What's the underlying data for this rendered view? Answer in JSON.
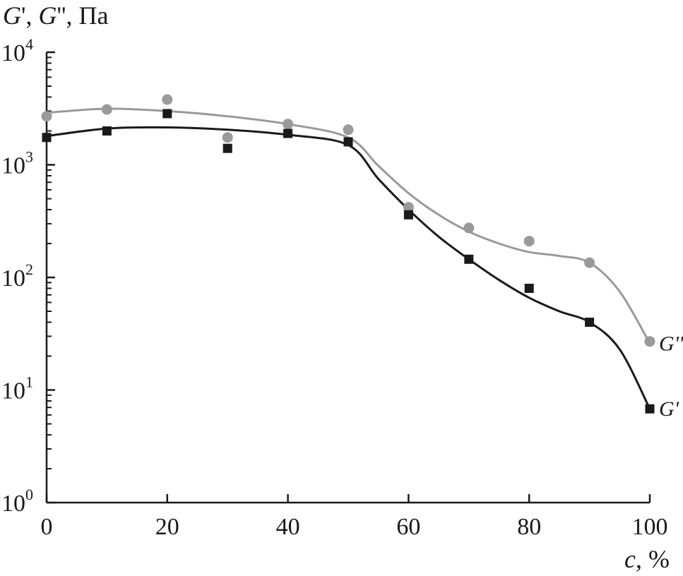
{
  "chart_data": {
    "type": "scatter",
    "ylabel_parts": [
      "G",
      "', ",
      "G",
      "'', ",
      "Па"
    ],
    "xlabel_parts": [
      "c",
      ", %"
    ],
    "xlim": [
      0,
      100
    ],
    "ylim": [
      1,
      10000
    ],
    "yscale": "log",
    "x_ticks": [
      0,
      20,
      40,
      60,
      80,
      100
    ],
    "x_tick_labels": [
      "0",
      "20",
      "40",
      "60",
      "80",
      "100"
    ],
    "y_ticks": [
      1,
      10,
      100,
      1000,
      10000
    ],
    "y_tick_labels": [
      {
        "base": "10",
        "exp": "0"
      },
      {
        "base": "10",
        "exp": "1"
      },
      {
        "base": "10",
        "exp": "2"
      },
      {
        "base": "10",
        "exp": "3"
      },
      {
        "base": "10",
        "exp": "4"
      }
    ],
    "grid": false,
    "series": [
      {
        "name": "G''",
        "marker": "circle",
        "color": "#9a9a9a",
        "x": [
          0,
          10,
          20,
          30,
          40,
          50,
          60,
          70,
          80,
          90,
          100
        ],
        "y": [
          2700,
          3100,
          3800,
          1750,
          2300,
          2050,
          420,
          275,
          210,
          135,
          27
        ],
        "fit_x": [
          0,
          10,
          20,
          30,
          40,
          50,
          55,
          60,
          65,
          70,
          75,
          80,
          85,
          90,
          95,
          100
        ],
        "fit_y": [
          2900,
          3150,
          3000,
          2700,
          2300,
          1750,
          980,
          560,
          360,
          255,
          200,
          168,
          155,
          135,
          75,
          26
        ]
      },
      {
        "name": "G'",
        "marker": "square",
        "color": "#1a1a1a",
        "x": [
          0,
          10,
          20,
          30,
          40,
          50,
          60,
          70,
          80,
          90,
          100
        ],
        "y": [
          1750,
          2000,
          2850,
          1400,
          1900,
          1600,
          360,
          145,
          80,
          40,
          6.8
        ],
        "fit_x": [
          0,
          10,
          20,
          30,
          40,
          50,
          55,
          60,
          65,
          70,
          75,
          80,
          85,
          90,
          95,
          100
        ],
        "fit_y": [
          1800,
          2100,
          2150,
          2050,
          1850,
          1500,
          750,
          400,
          230,
          145,
          95,
          66,
          50,
          40,
          23,
          6.8
        ]
      }
    ]
  }
}
